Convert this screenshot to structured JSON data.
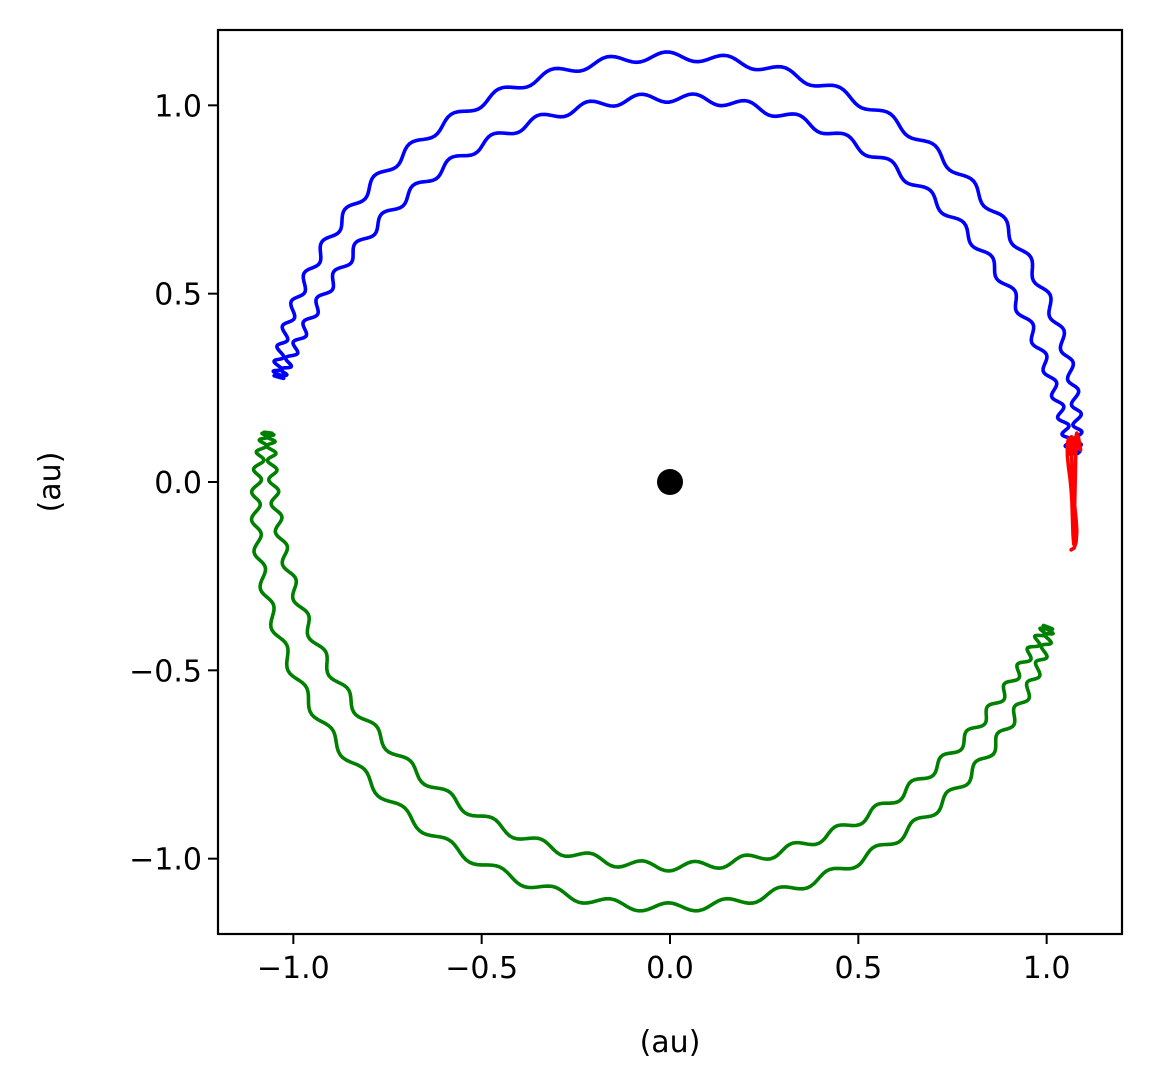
{
  "chart_data": {
    "type": "line",
    "title": "",
    "xlabel": "(au)",
    "ylabel": "(au)",
    "xlim": [
      -1.2,
      1.2
    ],
    "ylim": [
      -1.2,
      1.2
    ],
    "xticks": [
      -1.0,
      -0.5,
      0.0,
      0.5,
      1.0
    ],
    "yticks": [
      -1.0,
      -0.5,
      0.0,
      0.5,
      1.0
    ],
    "xtick_labels": [
      "−1.0",
      "−0.5",
      "0.0",
      "0.5",
      "1.0"
    ],
    "ytick_labels": [
      "−1.0",
      "−0.5",
      "0.0",
      "0.5",
      "1.0"
    ],
    "grid": false,
    "legend": "none",
    "central_body": {
      "x": 0.0,
      "y": 0.0,
      "color": "#000000"
    },
    "series": [
      {
        "color": "#0000ff",
        "shape": "tadpole",
        "outer_radius": 1.13,
        "inner_radius": 1.02,
        "angle_start_deg": 4,
        "angle_end_deg": 165,
        "wiggles": 64,
        "wiggle_amplitude": 0.012
      },
      {
        "color": "#008000",
        "shape": "tadpole",
        "outer_radius": 1.13,
        "inner_radius": 1.02,
        "angle_start_deg": 173,
        "angle_end_deg": 339,
        "wiggles": 66,
        "wiggle_amplitude": 0.012
      },
      {
        "color": "#ff0000",
        "shape": "loop",
        "x": [
          1.065,
          1.073,
          1.078,
          1.08,
          1.078,
          1.075,
          1.072,
          1.07,
          1.068,
          1.067,
          1.066,
          1.065,
          1.062,
          1.058,
          1.055,
          1.055,
          1.058,
          1.062,
          1.065,
          1.067,
          1.068,
          1.069,
          1.07,
          1.072,
          1.078,
          1.084,
          1.09,
          1.085,
          1.08,
          1.072,
          1.066,
          1.063
        ],
        "y": [
          -0.18,
          -0.175,
          -0.16,
          -0.13,
          -0.1,
          -0.07,
          -0.04,
          -0.01,
          0.02,
          0.05,
          0.08,
          0.1,
          0.11,
          0.115,
          0.1,
          0.07,
          0.04,
          0.01,
          -0.02,
          -0.05,
          -0.08,
          -0.11,
          -0.14,
          -0.165,
          0.11,
          0.12,
          0.085,
          0.095,
          0.13,
          0.09,
          0.12,
          0.085
        ]
      }
    ]
  }
}
